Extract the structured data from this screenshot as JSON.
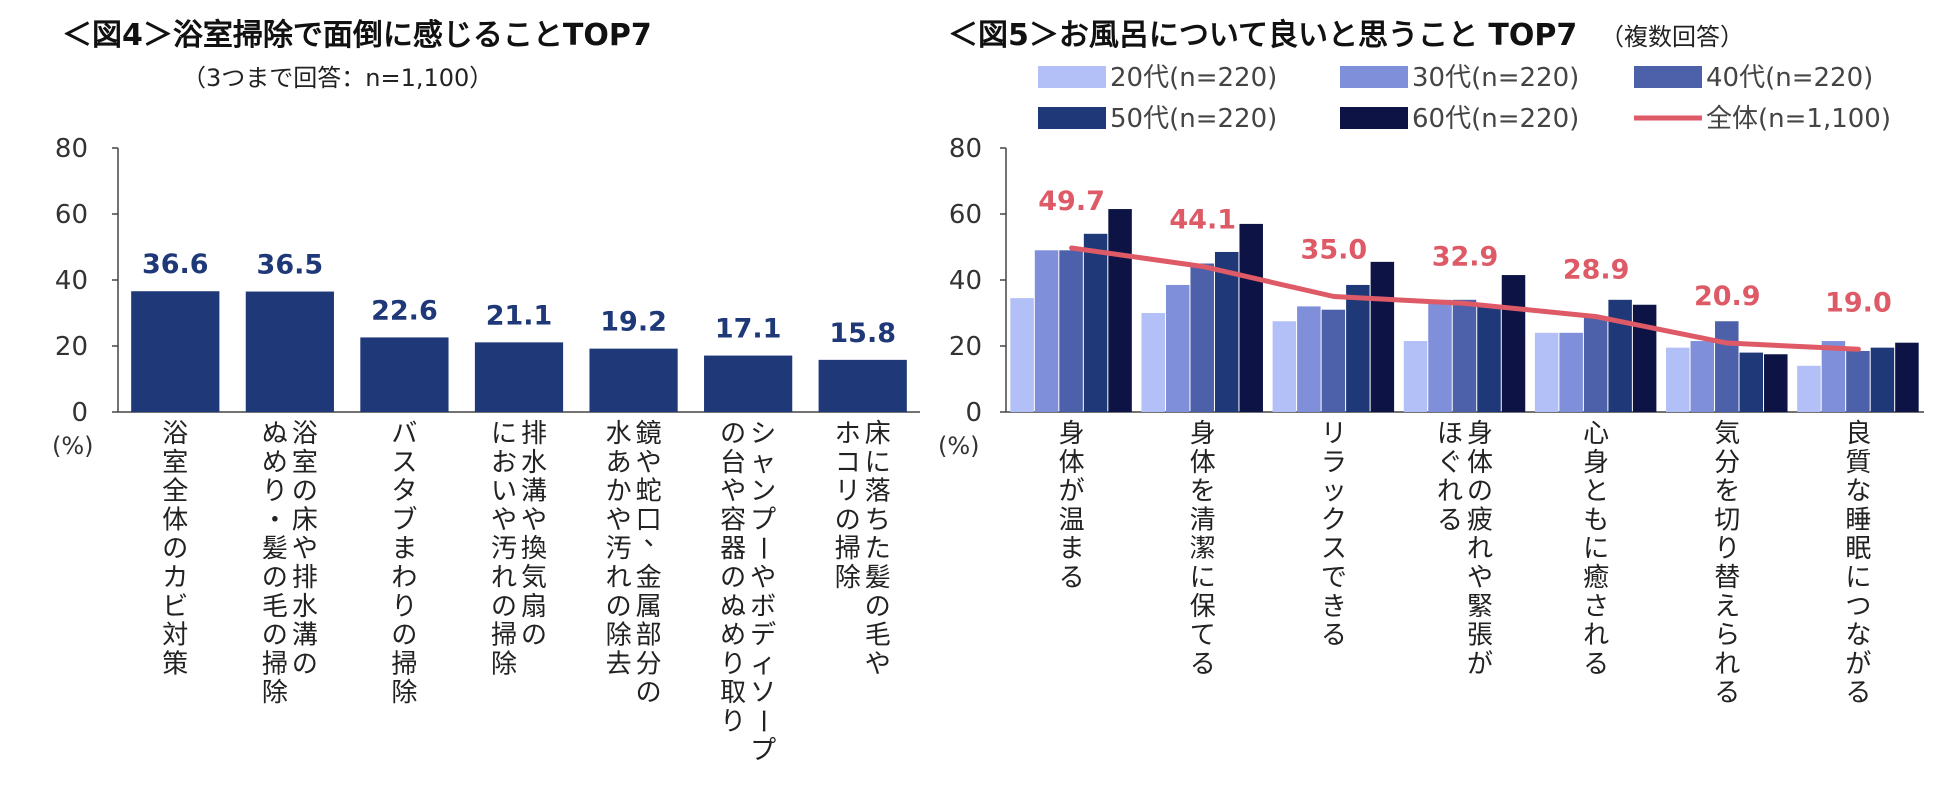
{
  "chart_data": [
    {
      "type": "bar",
      "title": "＜図4＞浴室掃除で面倒に感じることTOP7",
      "subtitle": "（3つまで回答：n=1,100）",
      "ylabel": "(%)",
      "ylim": [
        0,
        80
      ],
      "yticks": [
        0,
        20,
        40,
        60,
        80
      ],
      "bar_color": "#1f3878",
      "categories": [
        [
          "浴室全体のカビ対策"
        ],
        [
          "浴室の床や排水溝の",
          "ぬめり・髪の毛の掃除"
        ],
        [
          "バスタブまわりの掃除"
        ],
        [
          "排水溝や換気扇の",
          "においや汚れの掃除"
        ],
        [
          "鏡や蛇口、金属部分の",
          "水あかや汚れの除去"
        ],
        [
          "シャンプーやボディソープ",
          "の台や容器のぬめり取り"
        ],
        [
          "床に落ちた髪の毛や",
          "ホコリの掃除"
        ]
      ],
      "values": [
        36.6,
        36.5,
        22.6,
        21.1,
        19.2,
        17.1,
        15.8
      ],
      "labels": [
        "36.6",
        "36.5",
        "22.6",
        "21.1",
        "19.2",
        "17.1",
        "15.8"
      ]
    },
    {
      "type": "bar",
      "title": "＜図5＞お風呂について良いと思うこと TOP7",
      "subtitle": "（複数回答）",
      "ylabel": "(%)",
      "ylim": [
        0,
        80
      ],
      "yticks": [
        0,
        20,
        40,
        60,
        80
      ],
      "categories": [
        [
          "身体が温まる"
        ],
        [
          "身体を清潔に保てる"
        ],
        [
          "リラックスできる"
        ],
        [
          "身体の疲れや緊張が",
          "ほぐれる"
        ],
        [
          "心身ともに癒される"
        ],
        [
          "気分を切り替えられる"
        ],
        [
          "良質な睡眠につながる"
        ]
      ],
      "series": [
        {
          "name": "20代(n=220)",
          "color": "#b3bff7",
          "values": [
            34.5,
            30,
            27.5,
            21.5,
            24,
            19.5,
            14
          ]
        },
        {
          "name": "30代(n=220)",
          "color": "#7f8fda",
          "values": [
            49,
            38.5,
            32,
            34,
            24,
            21.5,
            21.5
          ]
        },
        {
          "name": "40代(n=220)",
          "color": "#4d60aa",
          "values": [
            49,
            45,
            31,
            34,
            29,
            27.5,
            18.5
          ]
        },
        {
          "name": "50代(n=220)",
          "color": "#1f3878",
          "values": [
            54,
            48.5,
            38.5,
            32.5,
            34,
            18,
            19.5
          ]
        },
        {
          "name": "60代(n=220)",
          "color": "#0d1445",
          "values": [
            61.5,
            57,
            45.5,
            41.5,
            32.5,
            17.5,
            21
          ]
        }
      ],
      "line": {
        "name": "全体(n=1,100)",
        "color": "#de5a66",
        "values": [
          49.7,
          44.1,
          35.0,
          32.9,
          28.9,
          20.9,
          19.0
        ],
        "labels": [
          "49.7",
          "44.1",
          "35.0",
          "32.9",
          "28.9",
          "20.9",
          "19.0"
        ]
      }
    }
  ]
}
